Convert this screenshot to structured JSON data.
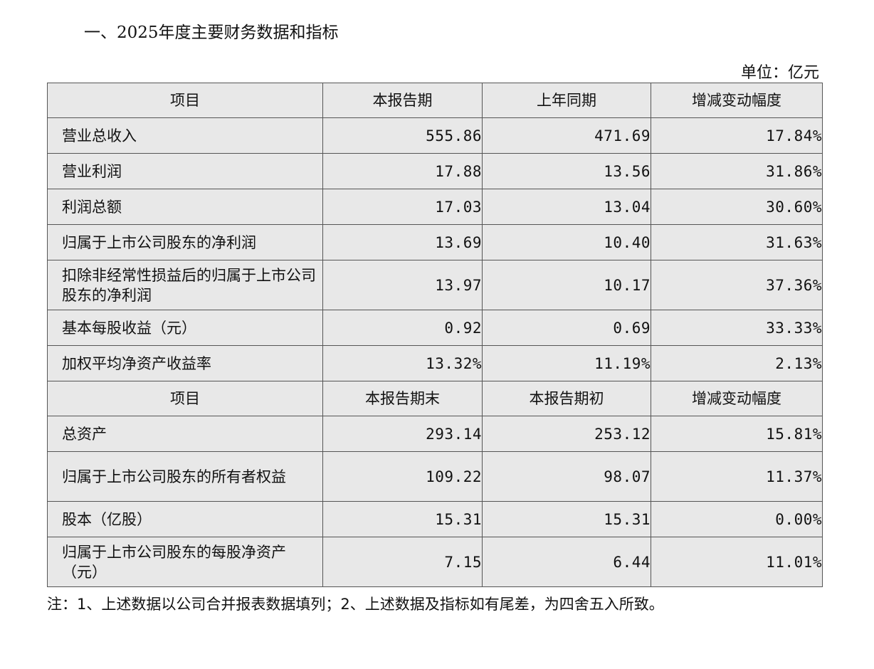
{
  "title": "一、2025年度主要财务数据和指标",
  "unit": "单位：亿元",
  "sections": [
    {
      "headers": [
        "项目",
        "本报告期",
        "上年同期",
        "增减变动幅度"
      ],
      "rows": [
        [
          "营业总收入",
          "555.86",
          "471.69",
          "17.84%"
        ],
        [
          "营业利润",
          "17.88",
          "13.56",
          "31.86%"
        ],
        [
          "利润总额",
          "17.03",
          "13.04",
          "30.60%"
        ],
        [
          "归属于上市公司股东的净利润",
          "13.69",
          "10.40",
          "31.63%"
        ],
        [
          "扣除非经常性损益后的归属于上市公司股东的净利润",
          "13.97",
          "10.17",
          "37.36%"
        ],
        [
          "基本每股收益（元）",
          "0.92",
          "0.69",
          "33.33%"
        ],
        [
          "加权平均净资产收益率",
          "13.32%",
          "11.19%",
          "2.13%"
        ]
      ]
    },
    {
      "headers": [
        "项目",
        "本报告期末",
        "本报告期初",
        "增减变动幅度"
      ],
      "rows": [
        [
          "总资产",
          "293.14",
          "253.12",
          "15.81%"
        ],
        [
          "归属于上市公司股东的所有者权益",
          "109.22",
          "98.07",
          "11.37%"
        ],
        [
          "股本（亿股）",
          "15.31",
          "15.31",
          "0.00%"
        ],
        [
          "归属于上市公司股东的每股净资产（元）",
          "7.15",
          "6.44",
          "11.01%"
        ]
      ]
    }
  ],
  "note": "注：1、上述数据以公司合并报表数据填列；2、上述数据及指标如有尾差，为四舍五入所致。"
}
